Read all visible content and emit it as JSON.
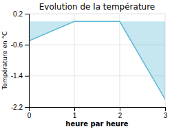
{
  "chart_data": {
    "type": "area",
    "title": "Evolution de la température",
    "xlabel": "heure par heure",
    "ylabel": "Température en °C",
    "x": [
      0,
      1,
      2,
      3
    ],
    "values": [
      -0.5,
      0.0,
      0.0,
      -2.0
    ],
    "color": "#5bb8d4",
    "xlim": [
      0,
      3
    ],
    "ylim": [
      -2.2,
      0.2
    ],
    "xticks": [
      0,
      1,
      2,
      3
    ],
    "yticks": [
      0.2,
      -0.6,
      -1.4,
      -2.2
    ],
    "grid": true
  }
}
